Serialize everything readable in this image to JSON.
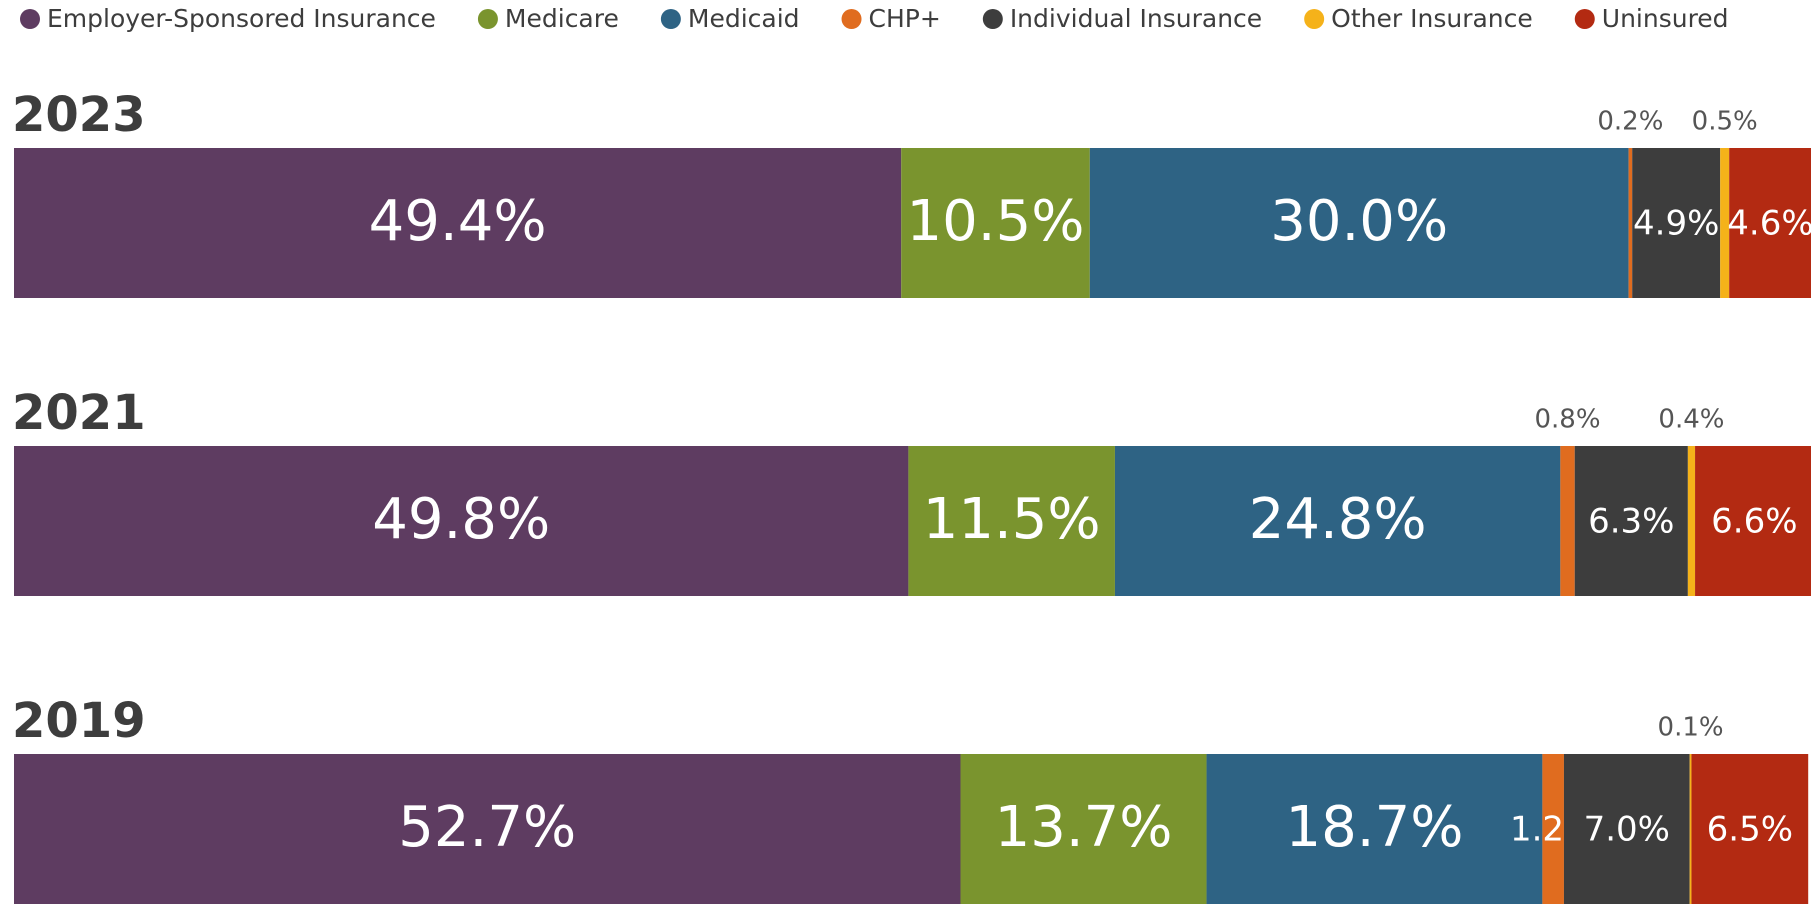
{
  "chart_data": {
    "type": "bar",
    "orientation": "horizontal",
    "stacked": true,
    "categories": [
      "2023",
      "2021",
      "2019"
    ],
    "series": [
      {
        "name": "Employer-Sponsored Insurance",
        "color": "#5e3c61",
        "values": [
          49.4,
          49.8,
          52.7
        ],
        "value_labels": [
          "49.4%",
          "49.8%",
          "52.7%"
        ]
      },
      {
        "name": "Medicare",
        "color": "#7a942e",
        "values": [
          10.5,
          11.5,
          13.7
        ],
        "value_labels": [
          "10.5%",
          "11.5%",
          "13.7%"
        ]
      },
      {
        "name": "Medicaid",
        "color": "#2e6384",
        "values": [
          30.0,
          24.8,
          18.7
        ],
        "value_labels": [
          "30.0%",
          "24.8%",
          "18.7%"
        ]
      },
      {
        "name": "CHP+",
        "color": "#e06c1f",
        "values": [
          0.2,
          0.8,
          1.2
        ],
        "value_labels": [
          "0.2%",
          "0.8%",
          "1.2%"
        ]
      },
      {
        "name": "Individual Insurance",
        "color": "#3d3d3d",
        "values": [
          4.9,
          6.3,
          7.0
        ],
        "value_labels": [
          "4.9%",
          "6.3%",
          "7.0%"
        ]
      },
      {
        "name": "Other Insurance",
        "color": "#f5b21a",
        "values": [
          0.5,
          0.4,
          0.1
        ],
        "value_labels": [
          "0.5%",
          "0.4%",
          "0.1%"
        ]
      },
      {
        "name": "Uninsured",
        "color": "#b32a12",
        "values": [
          4.6,
          6.6,
          6.5
        ],
        "value_labels": [
          "4.6%",
          "6.6%",
          "6.5%"
        ]
      }
    ],
    "legend": "top"
  }
}
